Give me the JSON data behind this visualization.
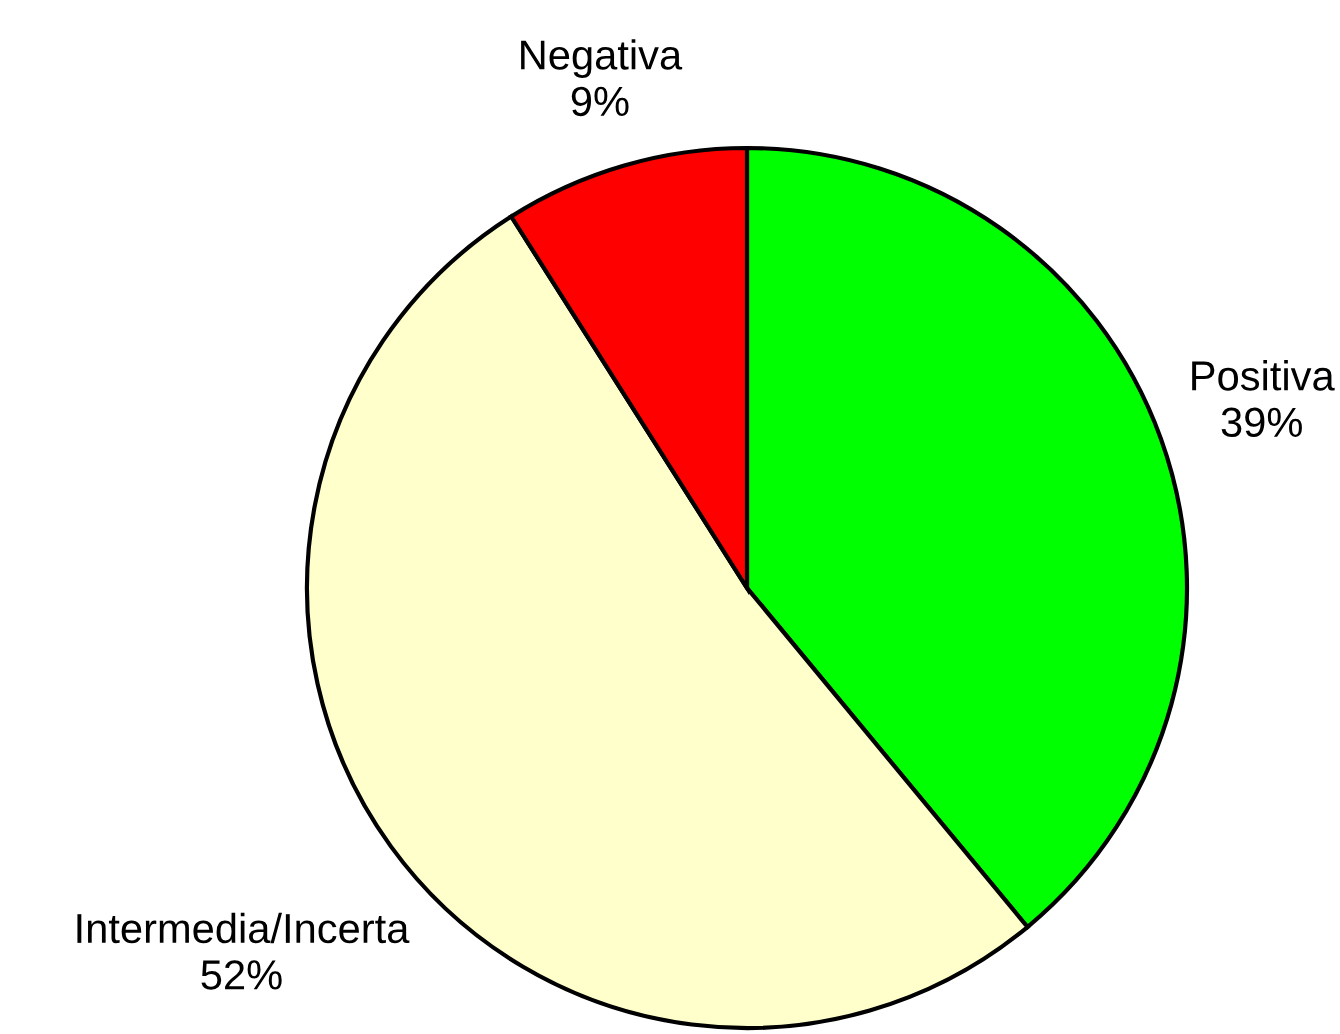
{
  "chart_data": {
    "type": "pie",
    "categories": [
      "Positiva",
      "Intermedia/Incerta",
      "Negativa"
    ],
    "values": [
      39,
      52,
      9
    ],
    "colors": [
      "#00ff00",
      "#ffffcc",
      "#ff0000"
    ],
    "value_labels": [
      "39%",
      "52%",
      "9%"
    ]
  }
}
